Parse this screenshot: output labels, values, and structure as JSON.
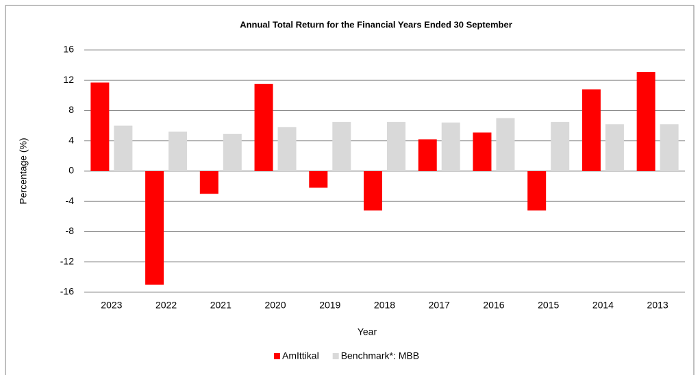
{
  "chart_data": {
    "type": "bar",
    "title": "Annual Total Return for the Financial Years Ended 30 September",
    "x_label": "Year",
    "y_label": "Percentage (%)",
    "categories": [
      "2023",
      "2022",
      "2021",
      "2020",
      "2019",
      "2018",
      "2017",
      "2016",
      "2015",
      "2014",
      "2013"
    ],
    "series": [
      {
        "name": "AmIttikal",
        "color": "#ff0000",
        "values": [
          11.7,
          -15.0,
          -3.0,
          11.5,
          -2.2,
          -5.2,
          4.2,
          5.1,
          -5.2,
          10.8,
          13.1
        ]
      },
      {
        "name": "Benchmark*: MBB",
        "color": "#d9d9d9",
        "values": [
          6.0,
          5.2,
          4.9,
          5.8,
          6.5,
          6.5,
          6.4,
          7.0,
          6.5,
          6.2,
          6.2
        ]
      }
    ],
    "ylim": [
      -16,
      16
    ],
    "yticks": [
      -16,
      -12,
      -8,
      -4,
      0,
      4,
      8,
      12,
      16
    ],
    "grid": true,
    "legend": "bottom"
  }
}
